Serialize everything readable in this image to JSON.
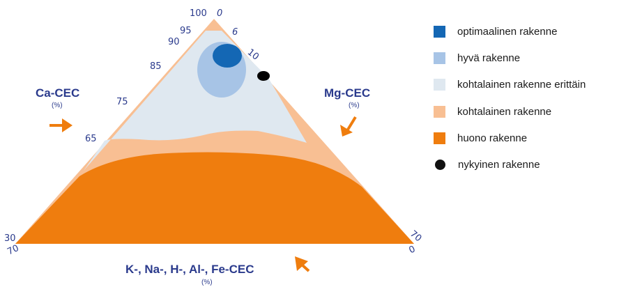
{
  "colors": {
    "optimal": "#1467b4",
    "good": "#a7c4e6",
    "moderate_very": "#dfe8f0",
    "moderate": "#f8bf93",
    "poor": "#ef7d0e",
    "current": "#000000",
    "axis_text": "#2a3a8c",
    "arrow": "#ef7d0e"
  },
  "axes": {
    "ca": {
      "title": "Ca-CEC",
      "unit": "(%)"
    },
    "mg": {
      "title": "Mg-CEC",
      "unit": "(%)"
    },
    "base": {
      "title": "K-, Na-, H-, Al-, Fe-CEC",
      "unit": "(%)"
    }
  },
  "ticks": {
    "ca": [
      "100",
      "95",
      "90",
      "85",
      "75",
      "65",
      "30"
    ],
    "mg": [
      "0",
      "6",
      "10",
      "70"
    ],
    "base": [
      "70",
      "0"
    ]
  },
  "legend": [
    {
      "label": "optimaalinen rakenne",
      "color": "#1467b4",
      "icon": "square"
    },
    {
      "label": "hyvä rakenne",
      "color": "#a7c4e6",
      "icon": "square"
    },
    {
      "label": "kohtalainen rakenne erittäin",
      "color": "#dfe8f0",
      "icon": "square"
    },
    {
      "label": "kohtalainen rakenne",
      "color": "#f8bf93",
      "icon": "square"
    },
    {
      "label": "huono rakenne",
      "color": "#ef7d0e",
      "icon": "square"
    },
    {
      "label": "nykyinen rakenne",
      "color": "#111111",
      "icon": "dot"
    }
  ]
}
